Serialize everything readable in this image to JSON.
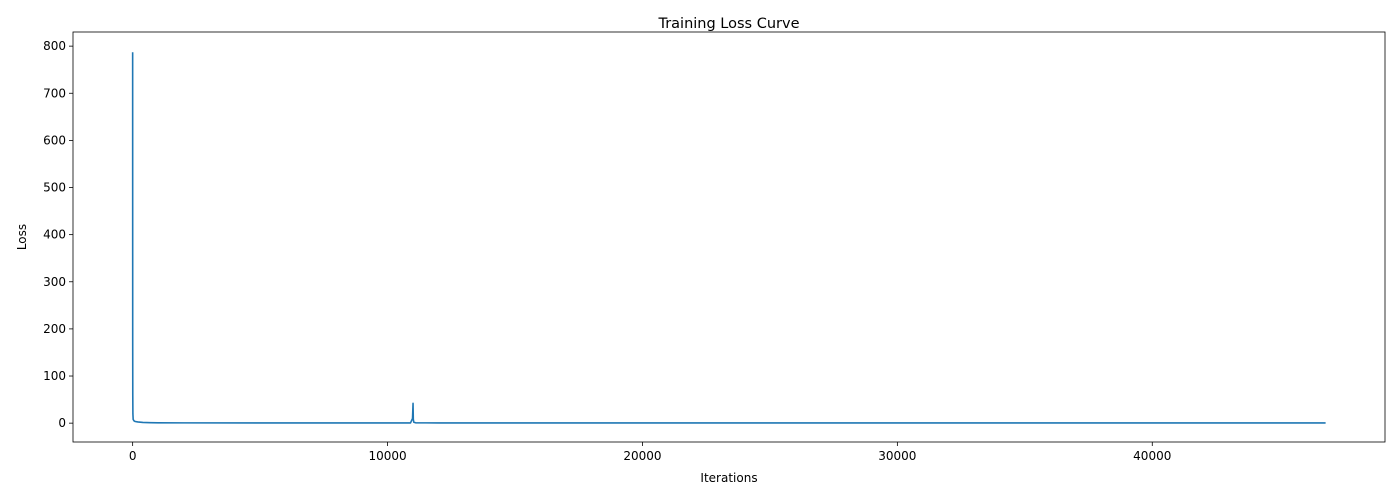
{
  "chart_data": {
    "type": "line",
    "title": "Training Loss Curve",
    "xlabel": "Iterations",
    "ylabel": "Loss",
    "xlim": [
      -2340,
      49130
    ],
    "ylim": [
      -40,
      830
    ],
    "xticks": [
      0,
      10000,
      20000,
      30000,
      40000
    ],
    "yticks": [
      0,
      100,
      200,
      300,
      400,
      500,
      600,
      700,
      800
    ],
    "grid": false,
    "line_color": "#1f77b4",
    "series": [
      {
        "x": [
          0,
          1,
          2,
          5,
          10,
          20,
          50,
          100,
          200,
          400,
          700,
          1000,
          2000,
          5000,
          8000,
          10000,
          10900,
          10980,
          11000,
          11010,
          11030,
          11100,
          11500,
          12000,
          15000,
          20000,
          25000,
          30000,
          35000,
          40000,
          45000,
          46800
        ],
        "y": [
          787,
          500,
          180,
          60,
          20,
          8,
          5,
          3.5,
          2.5,
          1.5,
          1.0,
          0.8,
          0.6,
          0.5,
          0.5,
          0.5,
          0.5,
          10,
          42,
          8,
          2,
          0.8,
          0.6,
          0.5,
          0.5,
          0.5,
          0.5,
          0.5,
          0.5,
          0.5,
          0.5,
          0.5
        ]
      }
    ]
  }
}
